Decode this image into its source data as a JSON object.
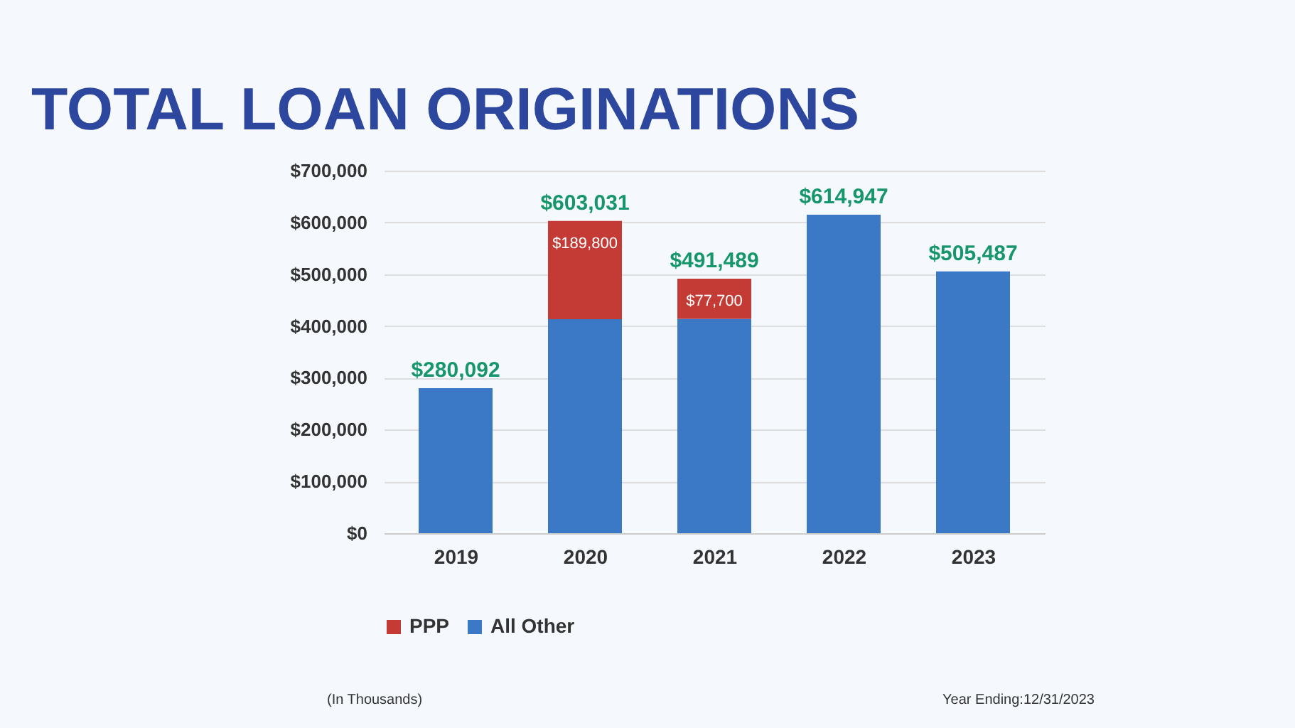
{
  "chart_data": {
    "type": "bar",
    "title": "TOTAL LOAN ORIGINATIONS",
    "categories": [
      "2019",
      "2020",
      "2021",
      "2022",
      "2023"
    ],
    "stacked": true,
    "series": [
      {
        "name": "All Other",
        "color": "#3b78c6",
        "values": [
          280092,
          413231,
          413789,
          614947,
          505487
        ]
      },
      {
        "name": "PPP",
        "color": "#c33b34",
        "values": [
          null,
          189800,
          77700,
          null,
          null
        ],
        "value_labels": [
          null,
          "$189,800",
          "$77,700",
          null,
          null
        ]
      }
    ],
    "totals": [
      "$280,092",
      "$603,031",
      "$491,489",
      "$614,947",
      "$505,487"
    ],
    "ylim": [
      0,
      700000
    ],
    "yticks": [
      {
        "value": 0,
        "label": "$0"
      },
      {
        "value": 100000,
        "label": "$100,000"
      },
      {
        "value": 200000,
        "label": "$200,000"
      },
      {
        "value": 300000,
        "label": "$300,000"
      },
      {
        "value": 400000,
        "label": "$400,000"
      },
      {
        "value": 500000,
        "label": "$500,000"
      },
      {
        "value": 600000,
        "label": "$600,000"
      },
      {
        "value": 700000,
        "label": "$700,000"
      }
    ],
    "grid": "y",
    "legend": "bottom",
    "annotations": [
      "(In Thousands)",
      "Year Ending:12/31/2023"
    ]
  }
}
